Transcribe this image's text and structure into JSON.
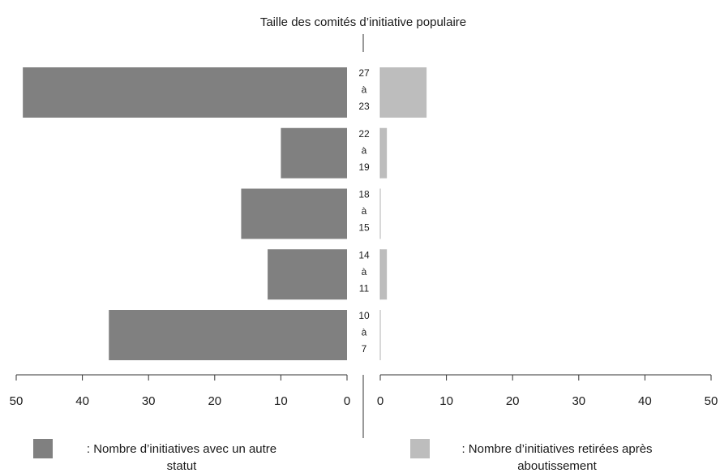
{
  "chart_data": {
    "type": "bar",
    "title": "Taille des comités d’initiative populaire",
    "categories": [
      [
        "27",
        "à",
        "23"
      ],
      [
        "22",
        "à",
        "19"
      ],
      [
        "18",
        "à",
        "15"
      ],
      [
        "14",
        "à",
        "11"
      ],
      [
        "10",
        "à",
        "7"
      ]
    ],
    "series": [
      {
        "name": ": Nombre d’initiatives avec un autre statut",
        "values": [
          49,
          10,
          16,
          12,
          36
        ],
        "color": "#808080"
      },
      {
        "name": ": Nombre d’initiatives retirées après aboutissement",
        "values": [
          7,
          1,
          0,
          1,
          0
        ],
        "color": "#bdbdbd"
      }
    ],
    "xlim": [
      0,
      50
    ],
    "ticks": [
      0,
      10,
      20,
      30,
      40,
      50
    ],
    "tick_labels": [
      "0",
      "10",
      "20",
      "30",
      "40",
      "50"
    ],
    "legend": [
      {
        "line1": ": Nombre d’initiatives avec un autre",
        "line2": "statut"
      },
      {
        "line1": ": Nombre d’initiatives retirées après",
        "line2": "aboutissement"
      }
    ],
    "grid": false,
    "legend_position": "bottom"
  }
}
